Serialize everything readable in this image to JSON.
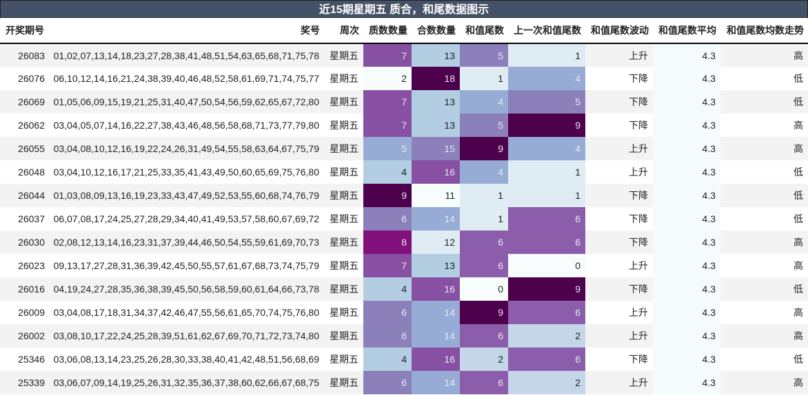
{
  "title": "近15期星期五 质合，和尾数据图示",
  "columns": [
    "开奖期号",
    "奖号",
    "周次",
    "质数数量",
    "合数数量",
    "和值尾数",
    "上一次和值尾数",
    "和值尾数波动",
    "和值尾数平均",
    "和值尾数均数走势"
  ],
  "rows": [
    {
      "issue": "26083",
      "numbers": "01,02,07,13,14,18,23,27,28,38,41,48,51,54,63,65,68,71,75,78",
      "weekday": "星期五",
      "prime": 7,
      "composite": 13,
      "tail": 5,
      "prev_tail": 1,
      "trend": "上升",
      "avg": "4.3",
      "avg_trend": "高"
    },
    {
      "issue": "26076",
      "numbers": "06,10,12,14,16,21,24,38,39,40,46,48,52,58,61,69,71,74,75,77",
      "weekday": "星期五",
      "prime": 2,
      "composite": 18,
      "tail": 1,
      "prev_tail": 4,
      "trend": "下降",
      "avg": "4.3",
      "avg_trend": "低"
    },
    {
      "issue": "26069",
      "numbers": "01,05,06,09,15,19,21,25,31,40,47,50,54,56,59,62,65,67,72,80",
      "weekday": "星期五",
      "prime": 7,
      "composite": 13,
      "tail": 4,
      "prev_tail": 5,
      "trend": "下降",
      "avg": "4.3",
      "avg_trend": "低"
    },
    {
      "issue": "26062",
      "numbers": "03,04,05,07,14,16,22,27,38,43,46,48,56,58,68,71,73,77,79,80",
      "weekday": "星期五",
      "prime": 7,
      "composite": 13,
      "tail": 5,
      "prev_tail": 9,
      "trend": "下降",
      "avg": "4.3",
      "avg_trend": "高"
    },
    {
      "issue": "26055",
      "numbers": "03,04,08,10,12,16,19,22,24,26,31,49,54,55,58,63,64,67,75,79",
      "weekday": "星期五",
      "prime": 5,
      "composite": 15,
      "tail": 9,
      "prev_tail": 4,
      "trend": "上升",
      "avg": "4.3",
      "avg_trend": "高"
    },
    {
      "issue": "26048",
      "numbers": "03,04,10,12,16,17,21,25,33,35,41,43,49,50,60,65,69,75,76,80",
      "weekday": "星期五",
      "prime": 4,
      "composite": 16,
      "tail": 4,
      "prev_tail": 1,
      "trend": "上升",
      "avg": "4.3",
      "avg_trend": "低"
    },
    {
      "issue": "26044",
      "numbers": "01,03,08,09,13,16,19,23,33,43,47,49,52,53,55,60,68,74,76,79",
      "weekday": "星期五",
      "prime": 9,
      "composite": 11,
      "tail": 1,
      "prev_tail": 1,
      "trend": "下降",
      "avg": "4.3",
      "avg_trend": "低"
    },
    {
      "issue": "26037",
      "numbers": "06,07,08,17,24,25,27,28,29,34,40,41,49,53,57,58,60,67,69,72",
      "weekday": "星期五",
      "prime": 6,
      "composite": 14,
      "tail": 1,
      "prev_tail": 6,
      "trend": "下降",
      "avg": "4.3",
      "avg_trend": "低"
    },
    {
      "issue": "26030",
      "numbers": "02,08,12,13,14,16,23,31,37,39,44,46,50,54,55,59,61,69,70,73",
      "weekday": "星期五",
      "prime": 8,
      "composite": 12,
      "tail": 6,
      "prev_tail": 6,
      "trend": "下降",
      "avg": "4.3",
      "avg_trend": "高"
    },
    {
      "issue": "26023",
      "numbers": "09,13,17,27,28,31,36,39,42,45,50,55,57,61,67,68,73,74,75,79",
      "weekday": "星期五",
      "prime": 7,
      "composite": 13,
      "tail": 6,
      "prev_tail": 0,
      "trend": "上升",
      "avg": "4.3",
      "avg_trend": "高"
    },
    {
      "issue": "26016",
      "numbers": "04,19,24,27,28,35,36,38,39,45,50,56,58,59,60,61,64,66,73,78",
      "weekday": "星期五",
      "prime": 4,
      "composite": 16,
      "tail": 0,
      "prev_tail": 9,
      "trend": "下降",
      "avg": "4.3",
      "avg_trend": "低"
    },
    {
      "issue": "26009",
      "numbers": "03,04,08,17,18,31,34,37,42,46,47,55,56,61,65,70,74,75,76,80",
      "weekday": "星期五",
      "prime": 6,
      "composite": 14,
      "tail": 9,
      "prev_tail": 6,
      "trend": "上升",
      "avg": "4.3",
      "avg_trend": "高"
    },
    {
      "issue": "26002",
      "numbers": "03,08,10,17,22,24,25,28,39,51,61,62,67,69,70,71,72,73,74,80",
      "weekday": "星期五",
      "prime": 6,
      "composite": 14,
      "tail": 6,
      "prev_tail": 2,
      "trend": "上升",
      "avg": "4.3",
      "avg_trend": "高"
    },
    {
      "issue": "25346",
      "numbers": "03,06,08,13,14,23,25,26,28,30,33,38,40,41,42,48,51,56,68,69",
      "weekday": "星期五",
      "prime": 4,
      "composite": 16,
      "tail": 2,
      "prev_tail": 6,
      "trend": "下降",
      "avg": "4.3",
      "avg_trend": "低"
    },
    {
      "issue": "25339",
      "numbers": "03,06,07,09,14,19,25,26,31,32,35,36,37,38,60,62,66,67,68,75",
      "weekday": "星期五",
      "prime": 6,
      "composite": 14,
      "tail": 6,
      "prev_tail": 2,
      "trend": "上升",
      "avg": "4.3",
      "avg_trend": "高"
    }
  ],
  "heat_colors": {
    "prime": {
      "2": "#f7fcfd",
      "4": "#b3cde3",
      "5": "#96acd4",
      "6": "#8c80bb",
      "7": "#8850a3",
      "8": "#810f7c",
      "9": "#4d004b"
    },
    "composite": {
      "11": "#f7fcfd",
      "12": "#e0ecf4",
      "13": "#b3cde3",
      "14": "#96acd4",
      "15": "#8c80bb",
      "16": "#8850a3",
      "18": "#4d004b"
    },
    "tail": {
      "0": "#f7fcfd",
      "1": "#e0ecf4",
      "2": "#c4d6e7",
      "4": "#96acd4",
      "5": "#8c80bb",
      "6": "#8c5dab",
      "9": "#4d004b"
    },
    "prev_tail": {
      "0": "#f7fcfd",
      "1": "#e0ecf4",
      "2": "#c4d6e7",
      "4": "#96acd4",
      "5": "#8c80bb",
      "6": "#8c5dab",
      "9": "#4d004b"
    }
  },
  "light_text_threshold": {
    "prime": 5,
    "composite": 14,
    "tail": 4,
    "prev_tail": 4
  }
}
